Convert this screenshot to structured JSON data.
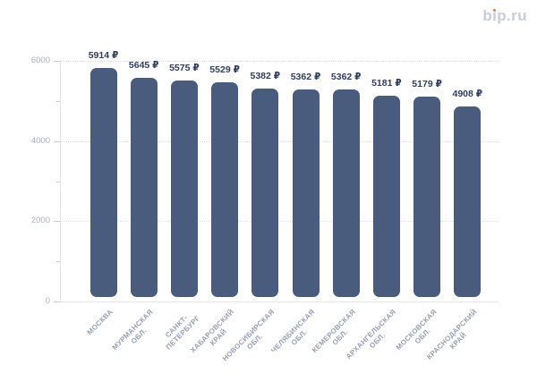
{
  "logo": {
    "text": "bip.ru",
    "text_color": "#c7ccda",
    "dot_color": "#ed6e5d"
  },
  "chart_data": {
    "type": "bar",
    "title": "",
    "xlabel": "",
    "ylabel": "",
    "categories": [
      "МОСКВА",
      "МУРМАНСКАЯ\nОБЛ.",
      "САНКТ-\nПЕТЕРБУРГ",
      "ХАБАРОВСКИЙ\nКРАЙ",
      "НОВОСИБИРСКАЯ\nОБЛ.",
      "ЧЕЛЯБИНСКАЯ\nОБЛ.",
      "КЕМЕРОВСКАЯ\nОБЛ.",
      "АРХАНГЕЛЬСКАЯ\nОБЛ.",
      "МОСКОВСКАЯ\nОБЛ.",
      "КРАСНОДАРСКИЙ\nКРАЙ"
    ],
    "values": [
      5914,
      5645,
      5575,
      5529,
      5382,
      5362,
      5362,
      5181,
      5179,
      4908
    ],
    "value_labels": [
      "5914 ₽",
      "5645 ₽",
      "5575 ₽",
      "5529 ₽",
      "5382 ₽",
      "5362 ₽",
      "5362 ₽",
      "5181 ₽",
      "5179 ₽",
      "4908 ₽"
    ],
    "currency_symbol": "₽",
    "ylim": [
      0,
      6000
    ],
    "y_major_ticks": [
      0,
      2000,
      4000,
      6000
    ],
    "y_minor_ticks": [
      1000,
      3000,
      5000
    ],
    "grid": "horizontal dotted lines at major y ticks",
    "legend": "none",
    "bar_color": "#4a5c7d",
    "value_label_color": "#2f3e5e",
    "axis_tick_label_color": "#a5adbd",
    "category_label_color": "#959fb2"
  }
}
